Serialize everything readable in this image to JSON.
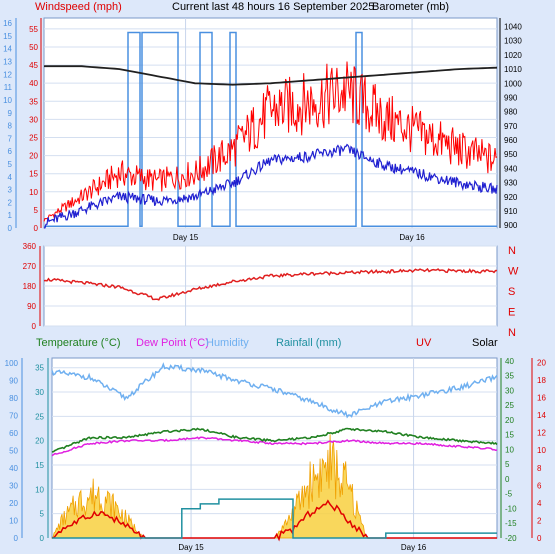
{
  "header": {
    "windspeed_label": "Windspeed (mph)",
    "title": "Current last 48 hours 16 September 2025",
    "barometer_label": "Barometer (mb)"
  },
  "legend2": {
    "temperature": "Temperature (°C)",
    "dew_point": "Dew Point (°C)",
    "humidity": "Humidity",
    "rainfall": "Rainfall (mm)",
    "uv": "UV",
    "solar": "Solar"
  },
  "colors": {
    "wind_gust": "#ff0000",
    "wind_avg": "#2020d0",
    "barometer": "#202020",
    "wind_dir": "#e02020",
    "temperature": "#208020",
    "dew_point": "#e020e0",
    "humidity": "#70b0f0",
    "rainfall": "#2090a0",
    "uv": "#e00000",
    "solar": "#f0a000",
    "left_axis_blue": "#4a90e0",
    "plot_bg": "#ffffff"
  },
  "chart_data": [
    {
      "type": "line",
      "title": "Current last 48 hours 16 September 2025",
      "x_labels": [
        "Day 15",
        "Day 16"
      ],
      "left_axis_mph": {
        "label": "Windspeed (mph)",
        "ticks": [
          0,
          5,
          10,
          15,
          20,
          25,
          30,
          35,
          40,
          45,
          50,
          55
        ]
      },
      "left_axis_bft": {
        "ticks": [
          0,
          1,
          2,
          3,
          4,
          5,
          6,
          7,
          8,
          9,
          10,
          11,
          12,
          13,
          14,
          15,
          16
        ]
      },
      "right_axis": {
        "label": "Barometer (mb)",
        "ticks": [
          900,
          910,
          920,
          930,
          940,
          950,
          960,
          970,
          980,
          990,
          1000,
          1010,
          1020,
          1030,
          1040
        ]
      },
      "series": [
        {
          "name": "Windspeed (mph)",
          "x_hours": [
            0,
            4,
            8,
            12,
            16,
            20,
            24,
            28,
            32,
            36,
            40,
            44,
            48
          ],
          "values": [
            2,
            8,
            14,
            12,
            14,
            20,
            30,
            32,
            35,
            28,
            24,
            20,
            17
          ]
        },
        {
          "name": "Barometer (mb)",
          "x_hours": [
            0,
            4,
            8,
            12,
            16,
            20,
            24,
            28,
            32,
            36,
            40,
            44,
            48
          ],
          "values": [
            1012,
            1012,
            1010,
            1005,
            1000,
            999,
            1000,
            1002,
            1004,
            1006,
            1008,
            1010,
            1011
          ]
        }
      ]
    },
    {
      "type": "line",
      "left_axis": {
        "ticks": [
          0,
          90,
          180,
          270,
          360
        ]
      },
      "right_axis": {
        "ticks": [
          "N",
          "W",
          "S",
          "E",
          "N"
        ]
      },
      "series": [
        {
          "name": "Wind direction",
          "x_hours": [
            0,
            4,
            8,
            12,
            16,
            20,
            24,
            28,
            32,
            36,
            40,
            44,
            48
          ],
          "values": [
            210,
            195,
            175,
            120,
            165,
            200,
            225,
            235,
            240,
            245,
            250,
            248,
            245
          ]
        }
      ]
    },
    {
      "type": "line",
      "left_axis_humidity": {
        "ticks": [
          0,
          10,
          20,
          30,
          40,
          50,
          60,
          70,
          80,
          90,
          100
        ]
      },
      "left_axis_rainfall": {
        "label": "Rainfall (mm)",
        "ticks": [
          0,
          5,
          10,
          15,
          20,
          25,
          30,
          35
        ]
      },
      "right_axis_temperature": {
        "ticks": [
          -20,
          -15,
          -10,
          -5,
          0,
          5,
          10,
          15,
          20,
          25,
          30,
          35,
          40
        ]
      },
      "right_axis_uv": {
        "ticks": [
          0,
          2,
          4,
          6,
          8,
          10,
          12,
          14,
          16,
          18,
          20
        ]
      },
      "x_labels": [
        "Day 15",
        "Day 16"
      ],
      "series": [
        {
          "name": "Humidity",
          "x_hours": [
            0,
            4,
            8,
            12,
            16,
            20,
            24,
            28,
            32,
            36,
            40,
            44,
            48
          ],
          "values": [
            95,
            92,
            80,
            98,
            96,
            90,
            85,
            78,
            70,
            78,
            82,
            86,
            92
          ]
        },
        {
          "name": "Temperature (°C)",
          "x_hours": [
            0,
            4,
            8,
            12,
            16,
            20,
            24,
            28,
            32,
            36,
            40,
            44,
            48
          ],
          "values": [
            9,
            14,
            14,
            16,
            17,
            14,
            13,
            14,
            17,
            16,
            14,
            13,
            12
          ]
        },
        {
          "name": "Dew Point (°C)",
          "x_hours": [
            0,
            4,
            8,
            12,
            16,
            20,
            24,
            28,
            32,
            36,
            40,
            44,
            48
          ],
          "values": [
            8,
            12,
            13,
            13,
            14,
            13,
            12,
            12,
            13,
            12,
            12,
            11,
            10
          ]
        },
        {
          "name": "Rainfall (mm)",
          "x_hours": [
            0,
            4,
            8,
            12,
            14,
            16,
            18,
            26,
            28,
            32,
            36,
            40,
            48
          ],
          "values": [
            0,
            0,
            0,
            0,
            6,
            7,
            8,
            0,
            0,
            0,
            1,
            1,
            1
          ]
        },
        {
          "name": "UV",
          "x_hours": [
            0,
            1,
            3,
            5,
            7,
            10,
            24,
            26,
            28,
            30,
            32,
            34,
            48
          ],
          "values": [
            0,
            1,
            2,
            3,
            2,
            0,
            0,
            1,
            3,
            4,
            2,
            0,
            0
          ]
        },
        {
          "name": "Solar",
          "x_hours": [
            0,
            1,
            3,
            5,
            7,
            10,
            24,
            26,
            28,
            30,
            32,
            34,
            48
          ],
          "values": [
            0,
            200,
            450,
            550,
            350,
            0,
            0,
            300,
            700,
            900,
            600,
            0,
            0
          ]
        }
      ]
    }
  ]
}
